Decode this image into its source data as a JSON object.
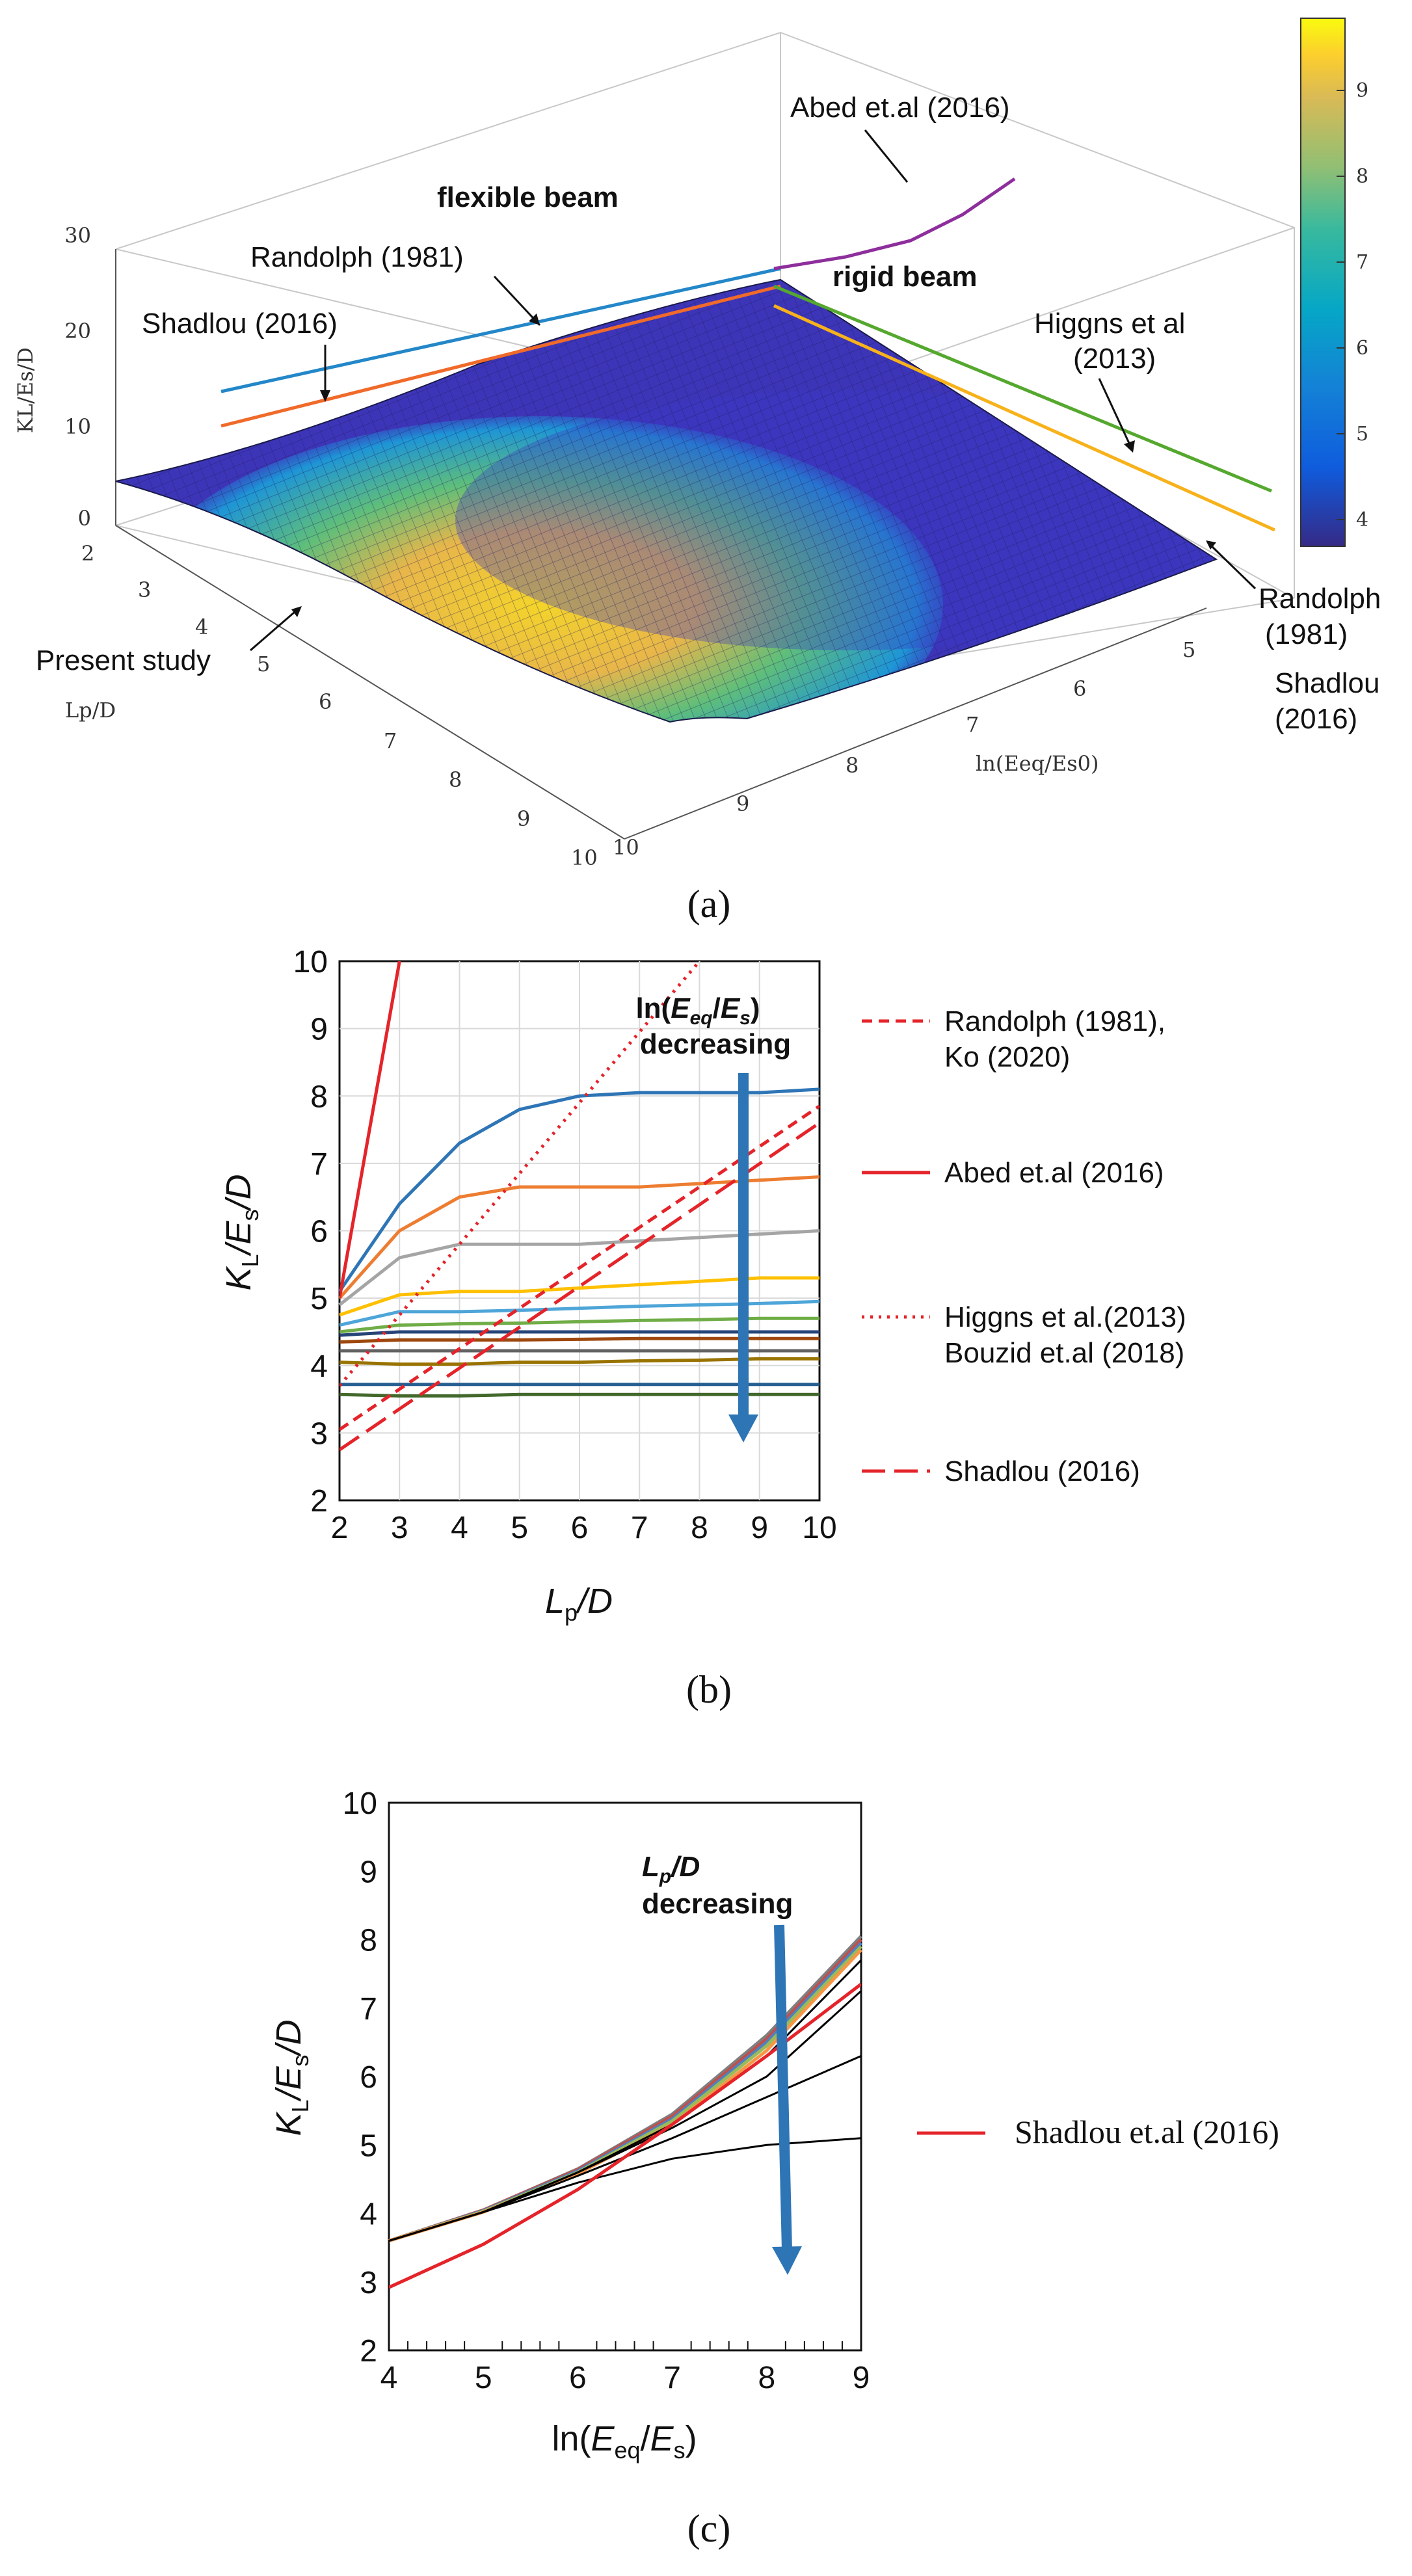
{
  "chart_data": [
    {
      "type": "surface",
      "panel_label": "(a)",
      "zlabel": "KL/Es/D",
      "xlabel": "Lp/D",
      "ylabel": "ln(Eeq/Es0)",
      "zticks": [
        0,
        10,
        20,
        30
      ],
      "zlim": [
        0,
        30
      ],
      "xticks": [
        2,
        3,
        4,
        5,
        6,
        7,
        8,
        9,
        10
      ],
      "yticks": [
        5,
        6,
        7,
        8,
        9,
        10
      ],
      "colorbar": {
        "ticks": [
          4,
          5,
          6,
          7,
          8,
          9
        ],
        "min": 3.5,
        "max": 9.9
      },
      "annotations": {
        "abed": "Abed et.al (2016)",
        "flexible": "flexible beam",
        "rigid": "rigid beam",
        "randolph": "Randolph (1981)",
        "shadlou": "Shadlou (2016)",
        "higgns": "Higgns et al",
        "higgns_year": "(2013)",
        "present": "Present study",
        "randolph_r1": "Randolph",
        "randolph_r2": "(1981)",
        "shadlou_r1": "Shadlou",
        "shadlou_r2": "(2016)"
      },
      "colors": {
        "abed": "#8e2e9c",
        "randolph": "#2387c8",
        "shadlou": "#f06a2a",
        "higgns": "#55a82e",
        "higgns2": "#f7b21b"
      }
    },
    {
      "type": "line",
      "panel_label": "(b)",
      "xlabel_main": "L",
      "xlabel_sub": "p",
      "xlabel_tail": "/D",
      "ylabel_main": "K",
      "ylabel_sub": "L",
      "ylabel_mid": "/E",
      "ylabel_sub2": "s",
      "ylabel_tail": "/D",
      "xlim": [
        2,
        10
      ],
      "ylim": [
        2,
        10
      ],
      "x": [
        2,
        3,
        4,
        5,
        6,
        7,
        8,
        9,
        10
      ],
      "annotation_line1_pre": "ln(",
      "annotation_line1_E": "E",
      "annotation_line1_eq": "eq",
      "annotation_line1_slash": "/",
      "annotation_line1_E2": "E",
      "annotation_line1_s": "s",
      "annotation_line1_post": ")",
      "annotation_line2": "decreasing",
      "series": [
        {
          "name": "c1",
          "color": "#2e75b6",
          "values": [
            5.1,
            6.4,
            7.3,
            7.8,
            8.0,
            8.05,
            8.05,
            8.05,
            8.1
          ]
        },
        {
          "name": "c2",
          "color": "#ed7d31",
          "values": [
            5.0,
            6.0,
            6.5,
            6.65,
            6.65,
            6.65,
            6.7,
            6.75,
            6.8
          ]
        },
        {
          "name": "c3",
          "color": "#a5a5a5",
          "values": [
            4.9,
            5.6,
            5.8,
            5.8,
            5.8,
            5.85,
            5.9,
            5.95,
            6.0
          ]
        },
        {
          "name": "c4",
          "color": "#ffc000",
          "values": [
            4.75,
            5.05,
            5.1,
            5.1,
            5.15,
            5.2,
            5.25,
            5.3,
            5.3
          ]
        },
        {
          "name": "c5",
          "color": "#4ea5d8",
          "values": [
            4.6,
            4.8,
            4.8,
            4.82,
            4.85,
            4.88,
            4.9,
            4.92,
            4.95
          ]
        },
        {
          "name": "c6",
          "color": "#70ad47",
          "values": [
            4.5,
            4.6,
            4.62,
            4.63,
            4.65,
            4.67,
            4.68,
            4.7,
            4.7
          ]
        },
        {
          "name": "c7",
          "color": "#264478",
          "values": [
            4.45,
            4.5,
            4.5,
            4.5,
            4.5,
            4.5,
            4.5,
            4.5,
            4.5
          ]
        },
        {
          "name": "c8",
          "color": "#9e480e",
          "values": [
            4.35,
            4.38,
            4.38,
            4.38,
            4.39,
            4.4,
            4.4,
            4.4,
            4.4
          ]
        },
        {
          "name": "c9",
          "color": "#636363",
          "values": [
            4.22,
            4.22,
            4.22,
            4.22,
            4.22,
            4.22,
            4.22,
            4.22,
            4.22
          ]
        },
        {
          "name": "c10",
          "color": "#997300",
          "values": [
            4.05,
            4.02,
            4.02,
            4.05,
            4.05,
            4.07,
            4.08,
            4.1,
            4.1
          ]
        },
        {
          "name": "c11",
          "color": "#255e91",
          "values": [
            3.72,
            3.72,
            3.72,
            3.72,
            3.72,
            3.72,
            3.72,
            3.72,
            3.72
          ]
        },
        {
          "name": "c12",
          "color": "#43682b",
          "values": [
            3.57,
            3.55,
            3.55,
            3.57,
            3.57,
            3.57,
            3.57,
            3.57,
            3.57
          ]
        }
      ],
      "references": [
        {
          "name": "Randolph (1981), Ko (2020)",
          "style": "dashed-short",
          "color": "#e4242a",
          "x": [
            2,
            10
          ],
          "y": [
            3.05,
            7.85
          ]
        },
        {
          "name": "Abed et.al (2016)",
          "style": "solid",
          "color": "#e4242a",
          "x": [
            2,
            3
          ],
          "y": [
            5.0,
            10.0
          ]
        },
        {
          "name": "Higgns et al.(2013) Bouzid et.al (2018)",
          "style": "dotted",
          "color": "#e4242a",
          "x": [
            2,
            8
          ],
          "y": [
            3.7,
            10.0
          ]
        },
        {
          "name": "Shadlou (2016)",
          "style": "dashed-long",
          "color": "#e4242a",
          "x": [
            2,
            10
          ],
          "y": [
            2.75,
            7.6
          ]
        }
      ],
      "legend": [
        {
          "l1": "Randolph (1981),",
          "l2": "Ko (2020)"
        },
        {
          "l1": "Abed et.al (2016)",
          "l2": ""
        },
        {
          "l1": "Higgns et al.(2013)",
          "l2": "Bouzid et.al (2018)"
        },
        {
          "l1": "Shadlou (2016)",
          "l2": ""
        }
      ]
    },
    {
      "type": "line",
      "panel_label": "(c)",
      "xlabel_pre": "ln(",
      "xlabel_E": "E",
      "xlabel_eq": "eq",
      "xlabel_slash": "/",
      "xlabel_E2": "E",
      "xlabel_s": "s",
      "xlabel_post": ")",
      "ylabel_main": "K",
      "ylabel_sub": "L",
      "ylabel_mid": "/E",
      "ylabel_sub2": "s",
      "ylabel_tail": "/D",
      "xlim": [
        4,
        9
      ],
      "ylim": [
        2,
        10
      ],
      "x": [
        4,
        5,
        6,
        7,
        8,
        9
      ],
      "annotation_L": "L",
      "annotation_p": "p",
      "annotation_rest": "/D",
      "annotation_line2": "decreasing",
      "series": [
        {
          "name": "s1",
          "color": "#7f7f7f",
          "values": [
            3.6,
            4.05,
            4.65,
            5.45,
            6.6,
            8.05
          ]
        },
        {
          "name": "s2",
          "color": "#c0504d",
          "values": [
            3.6,
            4.05,
            4.64,
            5.42,
            6.55,
            8.0
          ]
        },
        {
          "name": "s3",
          "color": "#4f81bd",
          "values": [
            3.6,
            4.04,
            4.62,
            5.38,
            6.5,
            7.95
          ]
        },
        {
          "name": "s4",
          "color": "#9bbb59",
          "values": [
            3.6,
            4.03,
            4.6,
            5.35,
            6.45,
            7.9
          ]
        },
        {
          "name": "s5",
          "color": "#f79646",
          "values": [
            3.6,
            4.02,
            4.58,
            5.3,
            6.38,
            7.85
          ]
        },
        {
          "name": "s6",
          "color": "#000000",
          "values": [
            3.6,
            4.02,
            4.6,
            5.3,
            6.3,
            7.7
          ]
        },
        {
          "name": "s7",
          "color": "#000000",
          "values": [
            3.6,
            4.02,
            4.6,
            5.25,
            6.0,
            7.25
          ]
        },
        {
          "name": "s8",
          "color": "#000000",
          "values": [
            3.6,
            4.02,
            4.55,
            5.1,
            5.7,
            6.3
          ]
        },
        {
          "name": "s9",
          "color": "#000000",
          "values": [
            3.6,
            4.02,
            4.45,
            4.8,
            5.0,
            5.1
          ]
        }
      ],
      "references": [
        {
          "name": "Shadlou et.al (2016)",
          "color": "#e4242a",
          "x": [
            4,
            5,
            6,
            7,
            8,
            9
          ],
          "y": [
            2.92,
            3.55,
            4.35,
            5.3,
            6.3,
            7.35
          ]
        }
      ],
      "legend": [
        {
          "l1": "Shadlou et.al (2016)"
        }
      ]
    }
  ]
}
